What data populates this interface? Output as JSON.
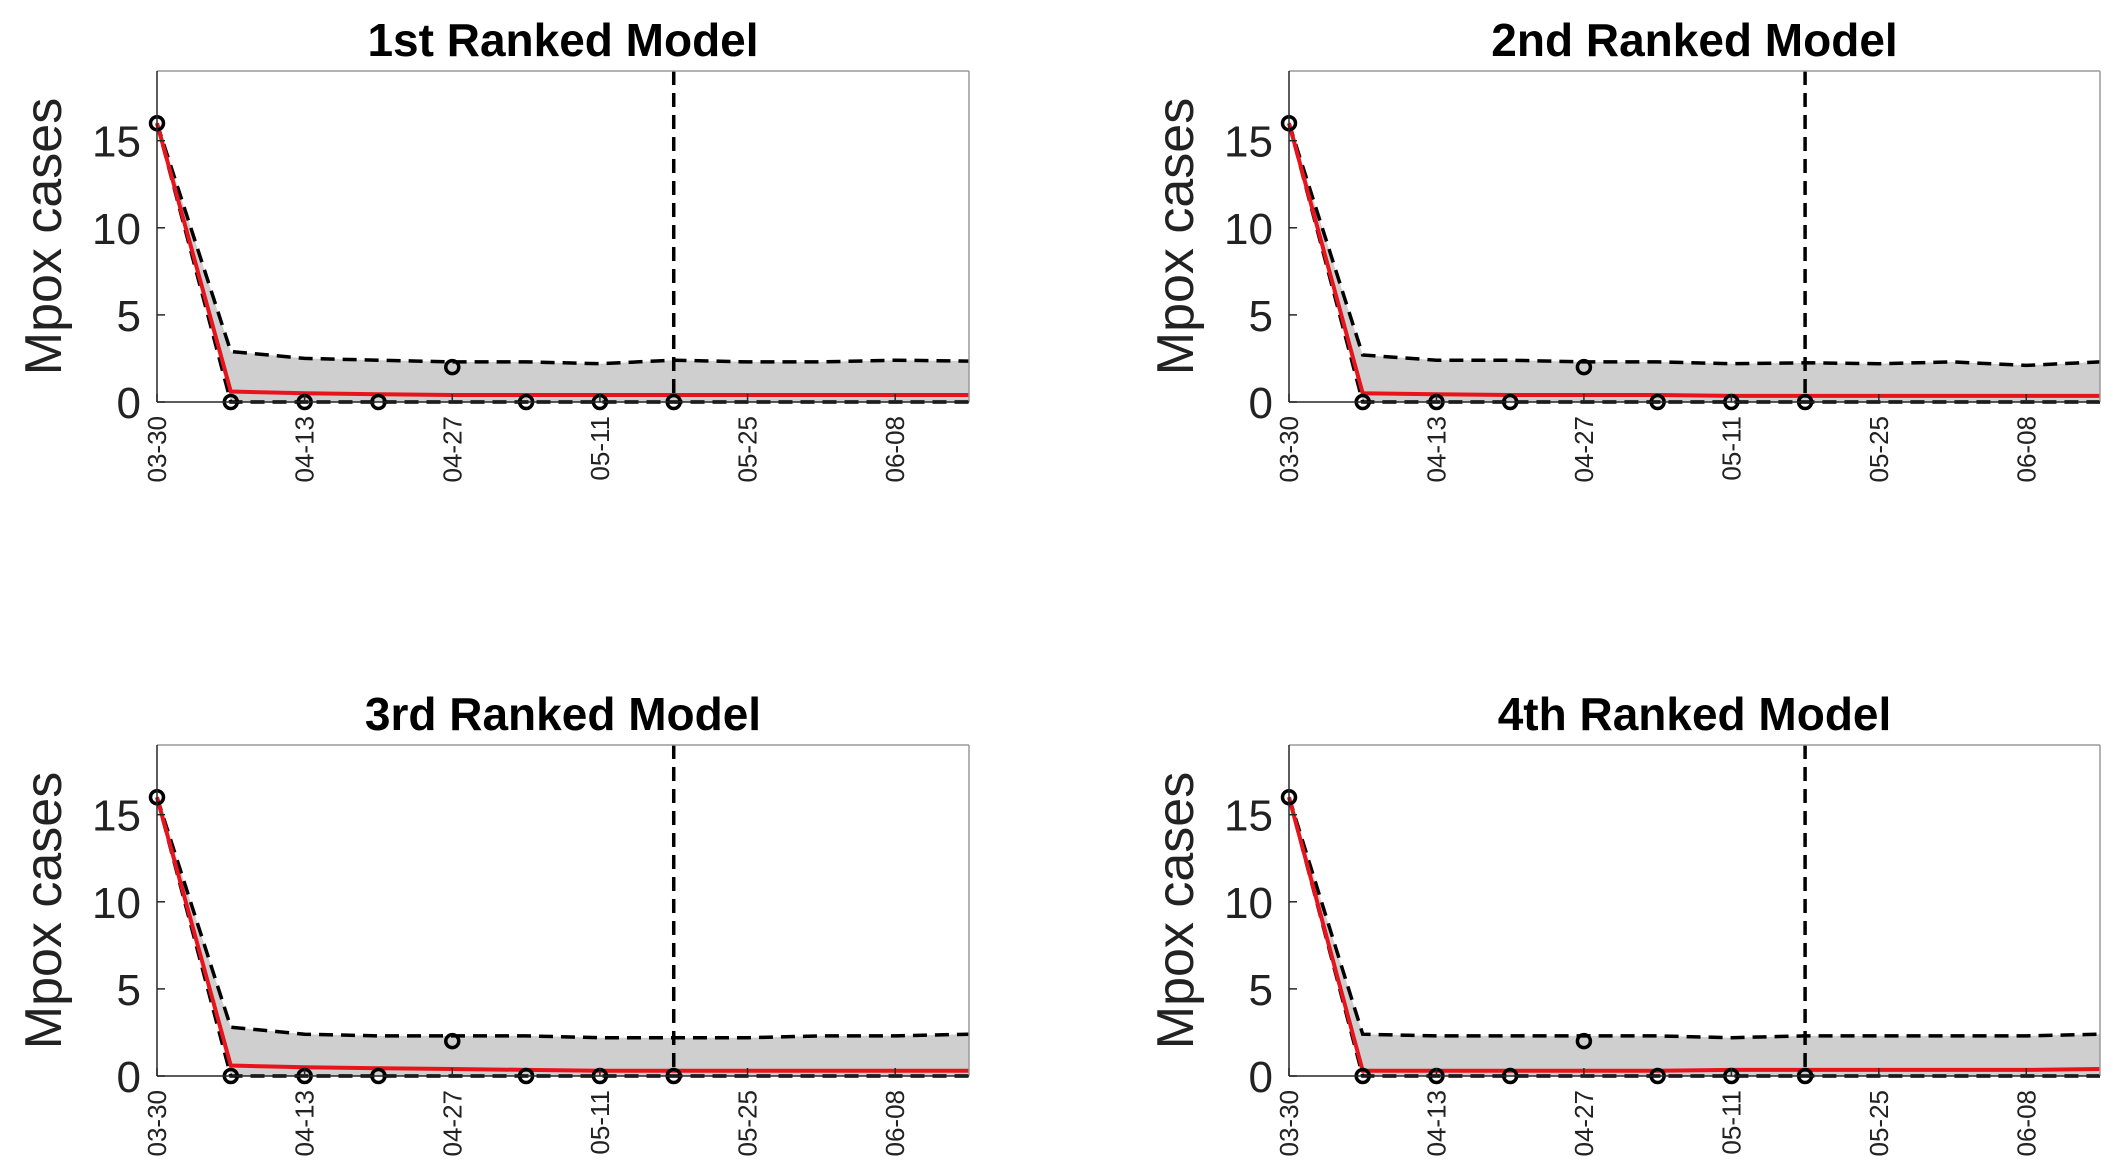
{
  "figure": {
    "colors": {
      "fit_line": "#e8141c",
      "band_fill": "#cfcfcf",
      "dashed": "#000000",
      "observed_marker": "#000000",
      "axis": "#262626"
    }
  },
  "chart_data": [
    {
      "type": "line",
      "title": "1st Ranked Model",
      "ylabel": "Mpox cases",
      "xlabel": "",
      "ylim": [
        0,
        19
      ],
      "yticks": [
        0,
        5,
        10,
        15
      ],
      "x_ticks": [
        "03-30",
        "04-13",
        "04-27",
        "05-11",
        "05-25",
        "06-08"
      ],
      "xlim": [
        "03-30",
        "06-15"
      ],
      "forecast_start": "05-18",
      "x": [
        "03-30",
        "04-06",
        "04-13",
        "04-20",
        "04-27",
        "05-04",
        "05-11",
        "05-18",
        "05-25",
        "06-01",
        "06-08",
        "06-15"
      ],
      "observed": {
        "x": [
          "03-30",
          "04-06",
          "04-13",
          "04-20",
          "04-27",
          "05-04",
          "05-11",
          "05-18"
        ],
        "values": [
          16,
          0,
          0,
          0,
          2,
          0,
          0,
          0
        ]
      },
      "series": [
        {
          "name": "",
          "role": "fit",
          "values": [
            16,
            0.6,
            0.5,
            0.45,
            0.4,
            0.4,
            0.4,
            0.4,
            0.4,
            0.4,
            0.4,
            0.4
          ]
        },
        {
          "name": "",
          "role": "upper",
          "values": [
            16,
            2.9,
            2.5,
            2.4,
            2.3,
            2.3,
            2.2,
            2.4,
            2.3,
            2.3,
            2.4,
            2.35
          ]
        },
        {
          "name": "",
          "role": "lower",
          "values": [
            16,
            0,
            0,
            0,
            0,
            0,
            0,
            0,
            0,
            0,
            0,
            0
          ]
        }
      ],
      "grid": false,
      "legend": "none"
    },
    {
      "type": "line",
      "title": "2nd Ranked Model",
      "ylabel": "Mpox cases",
      "xlabel": "",
      "ylim": [
        0,
        19
      ],
      "yticks": [
        0,
        5,
        10,
        15
      ],
      "x_ticks": [
        "03-30",
        "04-13",
        "04-27",
        "05-11",
        "05-25",
        "06-08"
      ],
      "xlim": [
        "03-30",
        "06-15"
      ],
      "forecast_start": "05-18",
      "x": [
        "03-30",
        "04-06",
        "04-13",
        "04-20",
        "04-27",
        "05-04",
        "05-11",
        "05-18",
        "05-25",
        "06-01",
        "06-08",
        "06-15"
      ],
      "observed": {
        "x": [
          "03-30",
          "04-06",
          "04-13",
          "04-20",
          "04-27",
          "05-04",
          "05-11",
          "05-18"
        ],
        "values": [
          16,
          0,
          0,
          0,
          2,
          0,
          0,
          0
        ]
      },
      "series": [
        {
          "name": "",
          "role": "fit",
          "values": [
            16,
            0.5,
            0.45,
            0.4,
            0.4,
            0.4,
            0.35,
            0.35,
            0.35,
            0.35,
            0.35,
            0.35
          ]
        },
        {
          "name": "",
          "role": "upper",
          "values": [
            16,
            2.7,
            2.4,
            2.4,
            2.3,
            2.3,
            2.2,
            2.25,
            2.2,
            2.3,
            2.1,
            2.3
          ]
        },
        {
          "name": "",
          "role": "lower",
          "values": [
            16,
            0,
            0,
            0,
            0,
            0,
            0,
            0,
            0,
            0,
            0,
            0
          ]
        }
      ],
      "grid": false,
      "legend": "none"
    },
    {
      "type": "line",
      "title": "3rd Ranked Model",
      "ylabel": "Mpox cases",
      "xlabel": "",
      "ylim": [
        0,
        19
      ],
      "yticks": [
        0,
        5,
        10,
        15
      ],
      "x_ticks": [
        "03-30",
        "04-13",
        "04-27",
        "05-11",
        "05-25",
        "06-08"
      ],
      "xlim": [
        "03-30",
        "06-15"
      ],
      "forecast_start": "05-18",
      "x": [
        "03-30",
        "04-06",
        "04-13",
        "04-20",
        "04-27",
        "05-04",
        "05-11",
        "05-18",
        "05-25",
        "06-01",
        "06-08",
        "06-15"
      ],
      "observed": {
        "x": [
          "03-30",
          "04-06",
          "04-13",
          "04-20",
          "04-27",
          "05-04",
          "05-11",
          "05-18"
        ],
        "values": [
          16,
          0,
          0,
          0,
          2,
          0,
          0,
          0
        ]
      },
      "series": [
        {
          "name": "",
          "role": "fit",
          "values": [
            16,
            0.6,
            0.5,
            0.45,
            0.4,
            0.35,
            0.3,
            0.3,
            0.3,
            0.3,
            0.3,
            0.3
          ]
        },
        {
          "name": "",
          "role": "upper",
          "values": [
            16,
            2.8,
            2.4,
            2.3,
            2.3,
            2.3,
            2.2,
            2.2,
            2.2,
            2.3,
            2.3,
            2.4
          ]
        },
        {
          "name": "",
          "role": "lower",
          "values": [
            16,
            0,
            0,
            0,
            0,
            0,
            0,
            0,
            0,
            0,
            0,
            0
          ]
        }
      ],
      "grid": false,
      "legend": "none"
    },
    {
      "type": "line",
      "title": "4th Ranked Model",
      "ylabel": "Mpox cases",
      "xlabel": "",
      "ylim": [
        0,
        19
      ],
      "yticks": [
        0,
        5,
        10,
        15
      ],
      "x_ticks": [
        "03-30",
        "04-13",
        "04-27",
        "05-11",
        "05-25",
        "06-08"
      ],
      "xlim": [
        "03-30",
        "06-15"
      ],
      "forecast_start": "05-18",
      "x": [
        "03-30",
        "04-06",
        "04-13",
        "04-20",
        "04-27",
        "05-04",
        "05-11",
        "05-18",
        "05-25",
        "06-01",
        "06-08",
        "06-15"
      ],
      "observed": {
        "x": [
          "03-30",
          "04-06",
          "04-13",
          "04-20",
          "04-27",
          "05-04",
          "05-11",
          "05-18"
        ],
        "values": [
          16,
          0,
          0,
          0,
          2,
          0,
          0,
          0
        ]
      },
      "series": [
        {
          "name": "",
          "role": "fit",
          "values": [
            16,
            0.3,
            0.3,
            0.3,
            0.3,
            0.3,
            0.35,
            0.35,
            0.35,
            0.35,
            0.35,
            0.4
          ]
        },
        {
          "name": "",
          "role": "upper",
          "values": [
            16,
            2.4,
            2.3,
            2.3,
            2.3,
            2.3,
            2.2,
            2.3,
            2.3,
            2.3,
            2.3,
            2.4
          ]
        },
        {
          "name": "",
          "role": "lower",
          "values": [
            16,
            0,
            0,
            0,
            0,
            0,
            0,
            0,
            0,
            0,
            0,
            0
          ]
        }
      ],
      "grid": false,
      "legend": "none"
    }
  ]
}
